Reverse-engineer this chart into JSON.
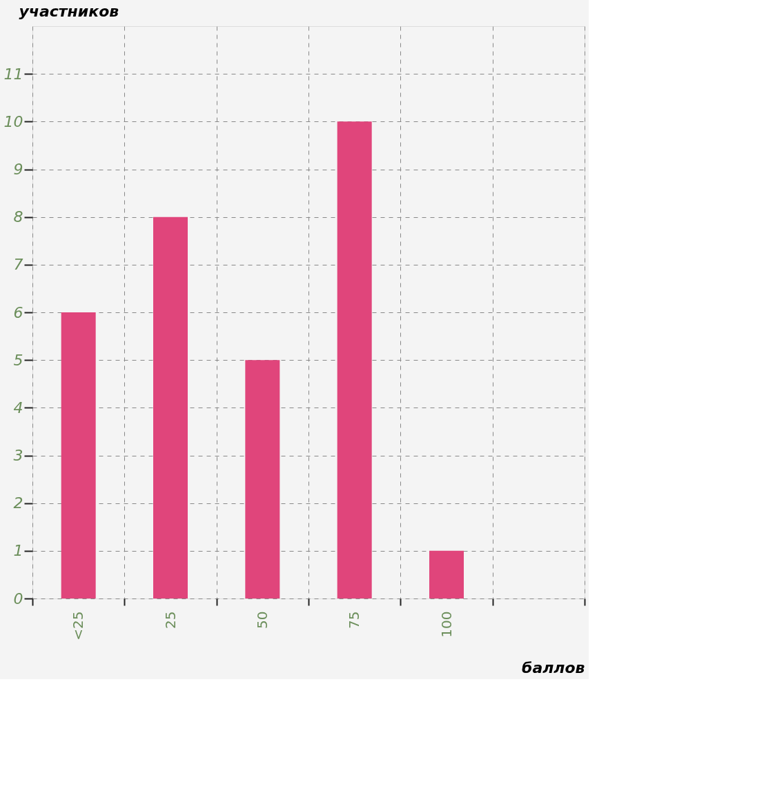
{
  "chart_data": {
    "type": "bar",
    "xlabel": "баллов",
    "ylabel": "участников",
    "categories": [
      "<25",
      "25",
      "50",
      "75",
      "100",
      null
    ],
    "values": [
      6,
      8,
      5,
      10,
      1,
      null
    ],
    "color": "#e0457b",
    "ylim": [
      0,
      12
    ],
    "yticks": [
      0,
      1,
      2,
      3,
      4,
      5,
      6,
      7,
      8,
      9,
      10,
      11
    ],
    "grid": true
  }
}
